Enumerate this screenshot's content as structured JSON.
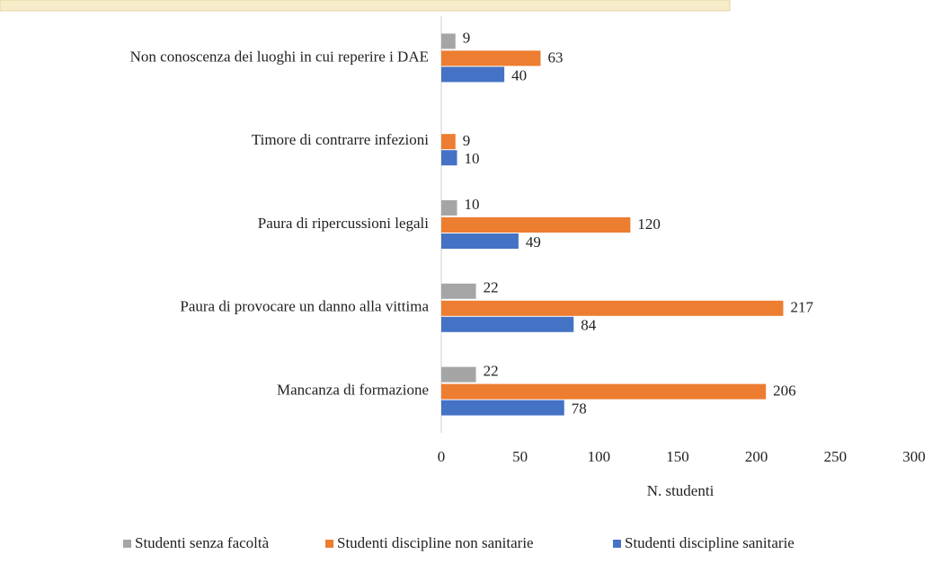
{
  "chart_data": {
    "type": "bar",
    "orientation": "horizontal",
    "categories": [
      "Non conoscenza dei luoghi in cui reperire i DAE",
      "Timore di contrarre infezioni",
      "Paura di ripercussioni legali",
      "Paura di provocare un danno alla vittima",
      "Mancanza di formazione"
    ],
    "series": [
      {
        "name": "Studenti senza facoltà",
        "color": "#a5a5a5",
        "values": [
          9,
          null,
          10,
          22,
          22
        ]
      },
      {
        "name": "Studenti discipline non sanitarie",
        "color": "#ed7d31",
        "values": [
          63,
          9,
          120,
          217,
          206
        ]
      },
      {
        "name": "Studenti discipline sanitarie",
        "color": "#4472c4",
        "values": [
          40,
          10,
          49,
          84,
          78
        ]
      }
    ],
    "xlabel": "N. studenti",
    "xlim": [
      0,
      300
    ],
    "xticks": [
      0,
      50,
      100,
      150,
      200,
      250,
      300
    ],
    "grid": false,
    "legend": "bottom"
  }
}
